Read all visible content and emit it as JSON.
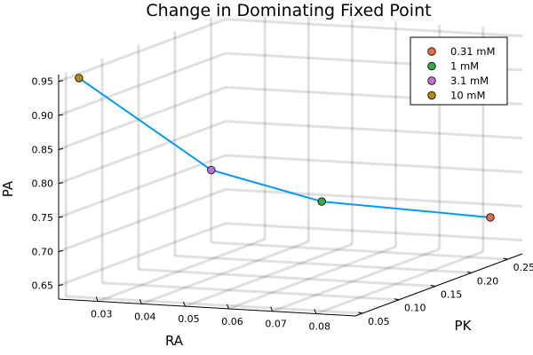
{
  "chart_data": {
    "type": "scatter",
    "title": "Change in Dominating Fixed Point",
    "xlabel": "RA",
    "ylabel": "PK",
    "zlabel": "PA",
    "x_ticks": [
      "0.03",
      "0.04",
      "0.05",
      "0.06",
      "0.07",
      "0.08"
    ],
    "y_ticks": [
      "0.05",
      "0.10",
      "0.15",
      "0.20",
      "0.25"
    ],
    "z_ticks": [
      "0.65",
      "0.70",
      "0.75",
      "0.80",
      "0.85",
      "0.90",
      "0.95"
    ],
    "xlim": [
      0.021,
      0.089
    ],
    "ylim": [
      0.04,
      0.27
    ],
    "zlim": [
      0.63,
      0.96
    ],
    "legend_position": "top-right",
    "line_color": "#009AFA",
    "series": [
      {
        "name": "0.31 mM",
        "color": "#E26F46",
        "x": 0.085,
        "y": 0.25,
        "z": 0.69
      },
      {
        "name": "1 mM",
        "color": "#3DA44D",
        "x": 0.063,
        "y": 0.15,
        "z": 0.745
      },
      {
        "name": "3.1 mM",
        "color": "#C271D2",
        "x": 0.046,
        "y": 0.1,
        "z": 0.805
      },
      {
        "name": "10 mM",
        "color": "#AC8D18",
        "x": 0.024,
        "y": 0.05,
        "z": 0.952
      }
    ]
  }
}
